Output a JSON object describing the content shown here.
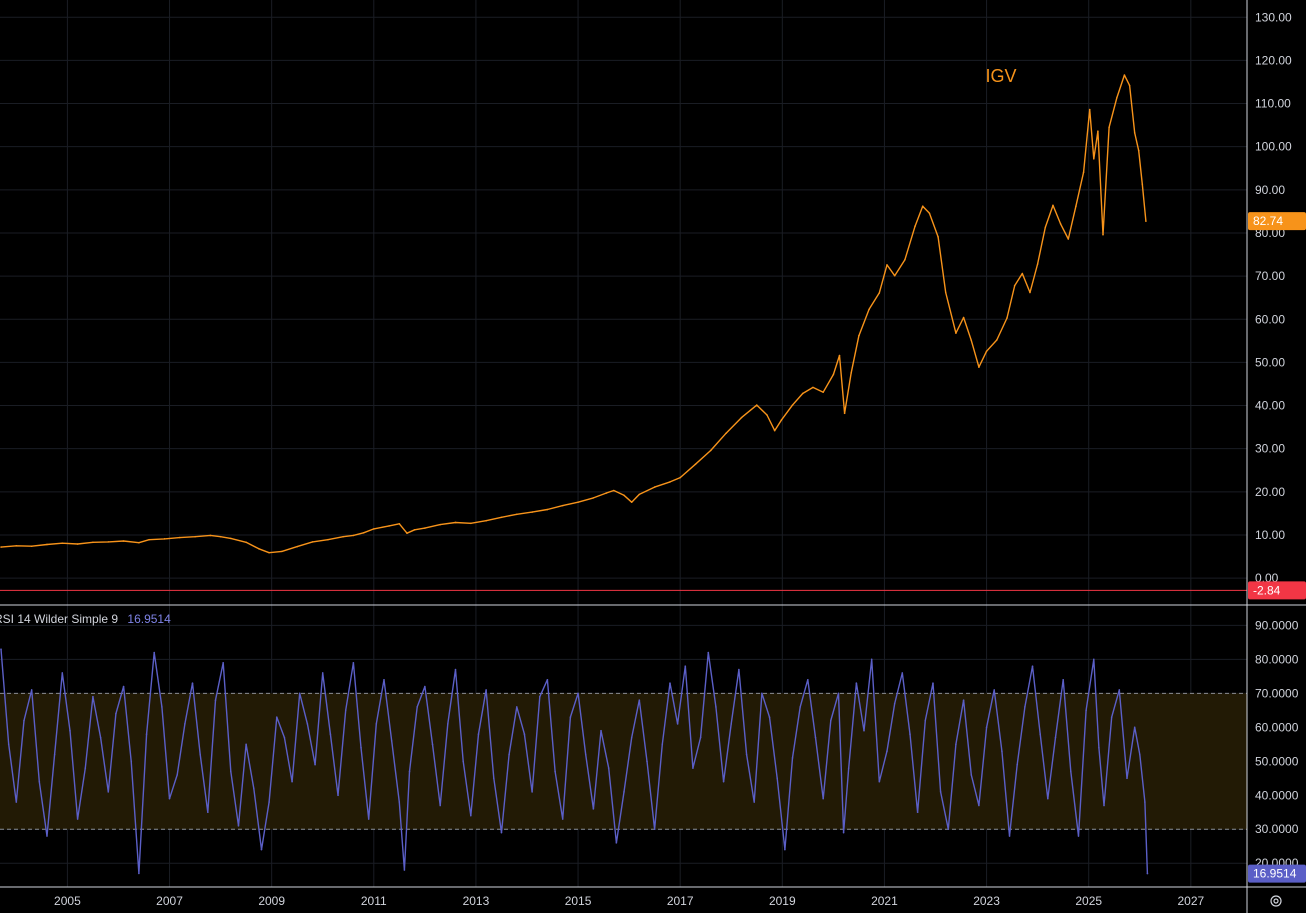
{
  "chart_data": [
    {
      "type": "line",
      "title": "IGV",
      "last_value_label": "82.74",
      "reference_line_label": "-2.84",
      "reference_line_value": -2.84,
      "ylim": [
        -6,
        134
      ],
      "y_ticks": [
        "130.00",
        "120.00",
        "110.00",
        "100.00",
        "90.00",
        "80.00",
        "70.00",
        "60.00",
        "50.00",
        "40.00",
        "30.00",
        "20.00",
        "10.00",
        "0.00"
      ],
      "y_tick_values": [
        130,
        120,
        110,
        100,
        90,
        80,
        70,
        60,
        50,
        40,
        30,
        20,
        10,
        0
      ],
      "x_ticks": [
        "2005",
        "2007",
        "2009",
        "2011",
        "2013",
        "2015",
        "2017",
        "2019",
        "2021",
        "2023",
        "2025",
        "2027"
      ],
      "x_tick_values": [
        2005,
        2007,
        2009,
        2011,
        2013,
        2015,
        2017,
        2019,
        2021,
        2023,
        2025,
        2027
      ],
      "xlim": [
        2003.68,
        2028.1
      ],
      "grid": true,
      "color": "#f7931a",
      "series": [
        {
          "x": [
            2003.7,
            2004.0,
            2004.3,
            2004.6,
            2004.9,
            2005.2,
            2005.5,
            2005.8,
            2006.1,
            2006.4,
            2006.6,
            2006.9,
            2007.2,
            2007.5,
            2007.8,
            2008.0,
            2008.2,
            2008.5,
            2008.75,
            2008.95,
            2009.2,
            2009.5,
            2009.8,
            2010.1,
            2010.4,
            2010.6,
            2010.8,
            2011.0,
            2011.3,
            2011.5,
            2011.65,
            2011.8,
            2012.0,
            2012.3,
            2012.6,
            2012.9,
            2013.2,
            2013.5,
            2013.8,
            2014.1,
            2014.4,
            2014.7,
            2015.0,
            2015.3,
            2015.55,
            2015.7,
            2015.9,
            2016.05,
            2016.2,
            2016.5,
            2016.8,
            2017.0,
            2017.3,
            2017.6,
            2017.9,
            2018.2,
            2018.5,
            2018.7,
            2018.85,
            2018.98,
            2019.2,
            2019.4,
            2019.6,
            2019.8,
            2020.0,
            2020.12,
            2020.22,
            2020.35,
            2020.5,
            2020.7,
            2020.9,
            2021.05,
            2021.2,
            2021.4,
            2021.6,
            2021.75,
            2021.88,
            2022.05,
            2022.2,
            2022.4,
            2022.55,
            2022.7,
            2022.85,
            2023.0,
            2023.2,
            2023.4,
            2023.55,
            2023.7,
            2023.85,
            2024.0,
            2024.15,
            2024.3,
            2024.45,
            2024.6,
            2024.75,
            2024.9,
            2025.02,
            2025.1,
            2025.18,
            2025.28,
            2025.4,
            2025.55,
            2025.7,
            2025.8,
            2025.9,
            2025.98,
            2026.05,
            2026.12
          ],
          "y": [
            7.2,
            7.5,
            7.4,
            7.8,
            8.1,
            7.9,
            8.3,
            8.4,
            8.6,
            8.2,
            8.9,
            9.1,
            9.4,
            9.6,
            9.9,
            9.6,
            9.2,
            8.3,
            6.8,
            5.9,
            6.2,
            7.3,
            8.4,
            8.9,
            9.6,
            9.9,
            10.5,
            11.4,
            12.1,
            12.6,
            10.4,
            11.2,
            11.6,
            12.4,
            12.9,
            12.7,
            13.3,
            14.1,
            14.8,
            15.3,
            15.9,
            16.8,
            17.6,
            18.6,
            19.7,
            20.3,
            19.2,
            17.6,
            19.4,
            21.1,
            22.3,
            23.3,
            26.4,
            29.6,
            33.6,
            37.2,
            40.1,
            37.8,
            34.2,
            36.6,
            40.1,
            42.8,
            44.2,
            43.1,
            47.2,
            51.6,
            38.2,
            47.6,
            56.2,
            62.3,
            66.1,
            72.6,
            70.1,
            73.8,
            81.6,
            86.2,
            84.6,
            79.1,
            66.2,
            56.8,
            60.4,
            55.1,
            48.9,
            52.6,
            55.2,
            60.3,
            67.8,
            70.6,
            66.2,
            72.8,
            81.3,
            86.4,
            82.1,
            78.6,
            86.2,
            94.1,
            108.6,
            97.2,
            103.6,
            79.6,
            104.5,
            111.3,
            116.6,
            114.2,
            103.2,
            99.1,
            91.3,
            82.74
          ]
        }
      ]
    },
    {
      "type": "line",
      "title": "RSI 14 Wilder Simple 9",
      "last_value_label": "16.9514",
      "ylim": [
        13,
        96
      ],
      "y_ticks": [
        "90.0000",
        "80.0000",
        "70.0000",
        "60.0000",
        "50.0000",
        "40.0000",
        "30.0000",
        "20.0000"
      ],
      "y_tick_values": [
        90,
        80,
        70,
        60,
        50,
        40,
        30,
        20
      ],
      "band": [
        30,
        70
      ],
      "band_labels": [
        "70.0000",
        "30.0000"
      ],
      "color": "#5b5fc7",
      "band_color": "#221a05",
      "series": [
        {
          "x": [
            2003.7,
            2003.85,
            2004.0,
            2004.15,
            2004.3,
            2004.45,
            2004.6,
            2004.75,
            2004.9,
            2005.05,
            2005.2,
            2005.35,
            2005.5,
            2005.65,
            2005.8,
            2005.95,
            2006.1,
            2006.25,
            2006.4,
            2006.55,
            2006.7,
            2006.85,
            2007.0,
            2007.15,
            2007.3,
            2007.45,
            2007.6,
            2007.75,
            2007.9,
            2008.05,
            2008.2,
            2008.35,
            2008.5,
            2008.65,
            2008.8,
            2008.95,
            2009.1,
            2009.25,
            2009.4,
            2009.55,
            2009.7,
            2009.85,
            2010.0,
            2010.15,
            2010.3,
            2010.45,
            2010.6,
            2010.75,
            2010.9,
            2011.05,
            2011.2,
            2011.35,
            2011.5,
            2011.6,
            2011.7,
            2011.85,
            2012.0,
            2012.15,
            2012.3,
            2012.45,
            2012.6,
            2012.75,
            2012.9,
            2013.05,
            2013.2,
            2013.35,
            2013.5,
            2013.65,
            2013.8,
            2013.95,
            2014.1,
            2014.25,
            2014.4,
            2014.55,
            2014.7,
            2014.85,
            2015.0,
            2015.15,
            2015.3,
            2015.45,
            2015.6,
            2015.75,
            2015.9,
            2016.05,
            2016.2,
            2016.35,
            2016.5,
            2016.65,
            2016.8,
            2016.95,
            2017.1,
            2017.25,
            2017.4,
            2017.55,
            2017.7,
            2017.85,
            2018.0,
            2018.15,
            2018.3,
            2018.45,
            2018.6,
            2018.75,
            2018.9,
            2019.05,
            2019.2,
            2019.35,
            2019.5,
            2019.65,
            2019.8,
            2019.95,
            2020.1,
            2020.2,
            2020.3,
            2020.45,
            2020.6,
            2020.75,
            2020.9,
            2021.05,
            2021.2,
            2021.35,
            2021.5,
            2021.65,
            2021.8,
            2021.95,
            2022.1,
            2022.25,
            2022.4,
            2022.55,
            2022.7,
            2022.85,
            2023.0,
            2023.15,
            2023.3,
            2023.45,
            2023.6,
            2023.75,
            2023.9,
            2024.05,
            2024.2,
            2024.35,
            2024.5,
            2024.65,
            2024.8,
            2024.95,
            2025.1,
            2025.2,
            2025.3,
            2025.45,
            2025.6,
            2025.75,
            2025.9,
            2026.0,
            2026.1,
            2026.15
          ],
          "y": [
            83,
            55,
            38,
            62,
            71,
            44,
            28,
            52,
            76,
            59,
            33,
            48,
            69,
            57,
            41,
            64,
            72,
            50,
            17,
            58,
            82,
            66,
            39,
            46,
            61,
            73,
            52,
            35,
            68,
            79,
            47,
            31,
            55,
            42,
            24,
            38,
            63,
            57,
            44,
            70,
            61,
            49,
            76,
            58,
            40,
            65,
            79,
            54,
            33,
            61,
            74,
            56,
            38,
            18,
            47,
            66,
            72,
            55,
            37,
            61,
            77,
            50,
            34,
            58,
            71,
            45,
            29,
            52,
            66,
            58,
            41,
            69,
            74,
            47,
            33,
            63,
            70,
            52,
            36,
            59,
            48,
            26,
            41,
            57,
            68,
            50,
            30,
            55,
            73,
            61,
            78,
            48,
            57,
            82,
            66,
            44,
            61,
            77,
            52,
            38,
            70,
            63,
            45,
            24,
            51,
            66,
            74,
            57,
            39,
            62,
            70,
            29,
            48,
            73,
            59,
            80,
            44,
            53,
            67,
            76,
            58,
            35,
            62,
            73,
            41,
            30,
            55,
            68,
            46,
            37,
            60,
            71,
            53,
            28,
            49,
            66,
            78,
            58,
            39,
            57,
            74,
            47,
            28,
            65,
            80,
            54,
            37,
            63,
            71,
            45,
            60,
            52,
            38,
            16.95
          ]
        }
      ]
    }
  ]
}
